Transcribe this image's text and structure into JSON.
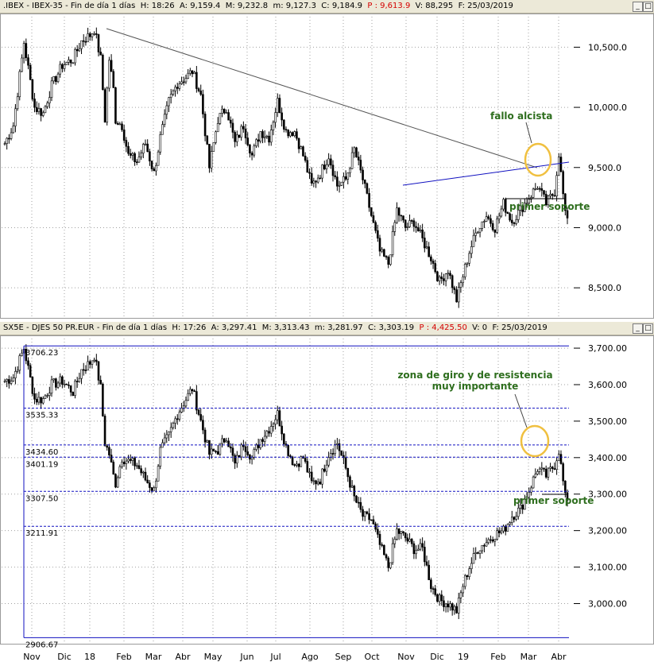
{
  "chart_data": [
    {
      "type": "candlestick",
      "header": {
        "symbol": ".IBEX - IBEX-35",
        "period": "Fin de día 1 días",
        "H_label": "H:",
        "H": "18:26",
        "A_label": "A:",
        "A": "9,159.4",
        "M_label": "M:",
        "M": "9,232.8",
        "m_label": "m:",
        "m": "9,127.3",
        "C_label": "C:",
        "C": "9,184.9",
        "P_label": "P :",
        "P": "9,613.9",
        "V_label": "V:",
        "V": "88,295",
        "F_label": "F:",
        "F": "25/03/2019"
      },
      "y_ticks": [
        "10,500.0",
        "10,000.0",
        "9,500.0",
        "9,000.0",
        "8,500.0"
      ],
      "y_tick_values": [
        10500,
        10000,
        9500,
        9000,
        8500
      ],
      "ylim": [
        8250,
        10780
      ],
      "trend_path": [
        [
          0,
          9700
        ],
        [
          4,
          9850
        ],
        [
          9,
          10540
        ],
        [
          14,
          10000
        ],
        [
          18,
          9950
        ],
        [
          22,
          10180
        ],
        [
          27,
          10350
        ],
        [
          32,
          10400
        ],
        [
          36,
          10550
        ],
        [
          40,
          10600
        ],
        [
          42,
          10650
        ],
        [
          45,
          10400
        ],
        [
          47,
          9900
        ],
        [
          49,
          10400
        ],
        [
          51,
          10150
        ],
        [
          52,
          9900
        ],
        [
          55,
          9850
        ],
        [
          58,
          9600
        ],
        [
          62,
          9550
        ],
        [
          66,
          9700
        ],
        [
          70,
          9450
        ],
        [
          73,
          9750
        ],
        [
          77,
          10050
        ],
        [
          81,
          10200
        ],
        [
          85,
          10250
        ],
        [
          88,
          10300
        ],
        [
          92,
          10100
        ],
        [
          96,
          9500
        ],
        [
          100,
          9900
        ],
        [
          104,
          10000
        ],
        [
          108,
          9700
        ],
        [
          112,
          9850
        ],
        [
          116,
          9600
        ],
        [
          120,
          9800
        ],
        [
          124,
          9750
        ],
        [
          128,
          10050
        ],
        [
          132,
          9800
        ],
        [
          136,
          9800
        ],
        [
          140,
          9600
        ],
        [
          144,
          9350
        ],
        [
          148,
          9450
        ],
        [
          152,
          9600
        ],
        [
          156,
          9350
        ],
        [
          160,
          9400
        ],
        [
          164,
          9650
        ],
        [
          168,
          9400
        ],
        [
          172,
          9100
        ],
        [
          176,
          8800
        ],
        [
          180,
          8700
        ],
        [
          184,
          9150
        ],
        [
          188,
          9000
        ],
        [
          192,
          9050
        ],
        [
          196,
          8900
        ],
        [
          200,
          8750
        ],
        [
          204,
          8550
        ],
        [
          208,
          8650
        ],
        [
          212,
          8400
        ],
        [
          215,
          8600
        ],
        [
          218,
          8800
        ],
        [
          222,
          9000
        ],
        [
          226,
          9100
        ],
        [
          230,
          9000
        ],
        [
          234,
          9200
        ],
        [
          238,
          9050
        ],
        [
          242,
          9150
        ],
        [
          246,
          9250
        ],
        [
          250,
          9350
        ],
        [
          254,
          9200
        ],
        [
          258,
          9300
        ],
        [
          260,
          9620
        ],
        [
          263,
          9100
        ]
      ],
      "annotations": {
        "fallo": "fallo alcista",
        "soporte": "primer soporte"
      },
      "colors": {
        "annotation": "#2e6e1e",
        "trendline_blue": "#1010c0",
        "circle": "#f0c040",
        "red": "#d40000"
      }
    },
    {
      "type": "candlestick",
      "header": {
        "symbol": "SX5E - DJES 50 PR.EUR",
        "period": "Fin de día 1 días",
        "H_label": "H:",
        "H": "17:26",
        "A_label": "A:",
        "A": "3,297.41",
        "M_label": "M:",
        "M": "3,313.43",
        "m_label": "m:",
        "m": "3,281.97",
        "C_label": "C:",
        "C": "3,303.19",
        "P_label": "P :",
        "P": "4,425.50",
        "V_label": "V:",
        "V": "0",
        "F_label": "F:",
        "F": "25/03/2019"
      },
      "y_ticks": [
        "3,700.00",
        "3,600.00",
        "3,500.00",
        "3,400.00",
        "3,300.00",
        "3,200.00",
        "3,100.00",
        "3,000.00"
      ],
      "y_tick_values": [
        3700,
        3600,
        3500,
        3400,
        3300,
        3200,
        3100,
        3000
      ],
      "ylim": [
        2890,
        3735
      ],
      "levels": [
        {
          "label": "3706.23",
          "value": 3706.23,
          "style": "solid"
        },
        {
          "label": "3535.33",
          "value": 3535.33,
          "style": "dashed"
        },
        {
          "label": "3434.60",
          "value": 3434.6,
          "style": "dashed"
        },
        {
          "label": "3401.19",
          "value": 3401.19,
          "style": "dashed"
        },
        {
          "label": "3307.50",
          "value": 3307.5,
          "style": "dashed"
        },
        {
          "label": "3211.91",
          "value": 3211.91,
          "style": "dashed"
        },
        {
          "label": "2906.67",
          "value": 2906.67,
          "style": "solid"
        }
      ],
      "trend_path": [
        [
          0,
          3610
        ],
        [
          4,
          3620
        ],
        [
          9,
          3700
        ],
        [
          14,
          3560
        ],
        [
          18,
          3560
        ],
        [
          22,
          3600
        ],
        [
          27,
          3610
        ],
        [
          32,
          3580
        ],
        [
          36,
          3640
        ],
        [
          40,
          3660
        ],
        [
          42,
          3680
        ],
        [
          45,
          3590
        ],
        [
          47,
          3440
        ],
        [
          49,
          3410
        ],
        [
          51,
          3350
        ],
        [
          52,
          3330
        ],
        [
          55,
          3400
        ],
        [
          58,
          3390
        ],
        [
          62,
          3380
        ],
        [
          66,
          3340
        ],
        [
          70,
          3310
        ],
        [
          73,
          3420
        ],
        [
          77,
          3460
        ],
        [
          81,
          3520
        ],
        [
          85,
          3560
        ],
        [
          88,
          3590
        ],
        [
          92,
          3500
        ],
        [
          96,
          3410
        ],
        [
          100,
          3420
        ],
        [
          104,
          3460
        ],
        [
          108,
          3380
        ],
        [
          112,
          3440
        ],
        [
          116,
          3400
        ],
        [
          120,
          3450
        ],
        [
          124,
          3480
        ],
        [
          128,
          3520
        ],
        [
          132,
          3430
        ],
        [
          136,
          3380
        ],
        [
          140,
          3400
        ],
        [
          144,
          3330
        ],
        [
          148,
          3340
        ],
        [
          152,
          3410
        ],
        [
          156,
          3440
        ],
        [
          160,
          3370
        ],
        [
          164,
          3290
        ],
        [
          168,
          3240
        ],
        [
          172,
          3230
        ],
        [
          176,
          3160
        ],
        [
          180,
          3100
        ],
        [
          184,
          3200
        ],
        [
          188,
          3180
        ],
        [
          192,
          3150
        ],
        [
          196,
          3150
        ],
        [
          200,
          3050
        ],
        [
          204,
          3010
        ],
        [
          208,
          3000
        ],
        [
          212,
          2980
        ],
        [
          215,
          3050
        ],
        [
          218,
          3100
        ],
        [
          222,
          3150
        ],
        [
          226,
          3170
        ],
        [
          230,
          3190
        ],
        [
          234,
          3200
        ],
        [
          238,
          3240
        ],
        [
          242,
          3260
        ],
        [
          246,
          3310
        ],
        [
          250,
          3370
        ],
        [
          254,
          3350
        ],
        [
          258,
          3380
        ],
        [
          260,
          3420
        ],
        [
          263,
          3290
        ]
      ],
      "annotations": {
        "zona_1": "zona de giro y de resistencia",
        "zona_2": "muy importante",
        "soporte": "primer soporte"
      },
      "colors": {
        "annotation": "#2e6e1e",
        "level_line": "#1010c0",
        "circle": "#f0c040",
        "red": "#d40000"
      }
    }
  ],
  "x_axis": {
    "labels": [
      "Nov",
      "Dic",
      "18",
      "Feb",
      "Mar",
      "Abr",
      "May",
      "Jun",
      "Jul",
      "Ago",
      "Sep",
      "Oct",
      "Nov",
      "Dic",
      "19",
      "Feb",
      "Mar",
      "Abr"
    ]
  },
  "window": {
    "buttons": [
      "_",
      "□"
    ]
  }
}
